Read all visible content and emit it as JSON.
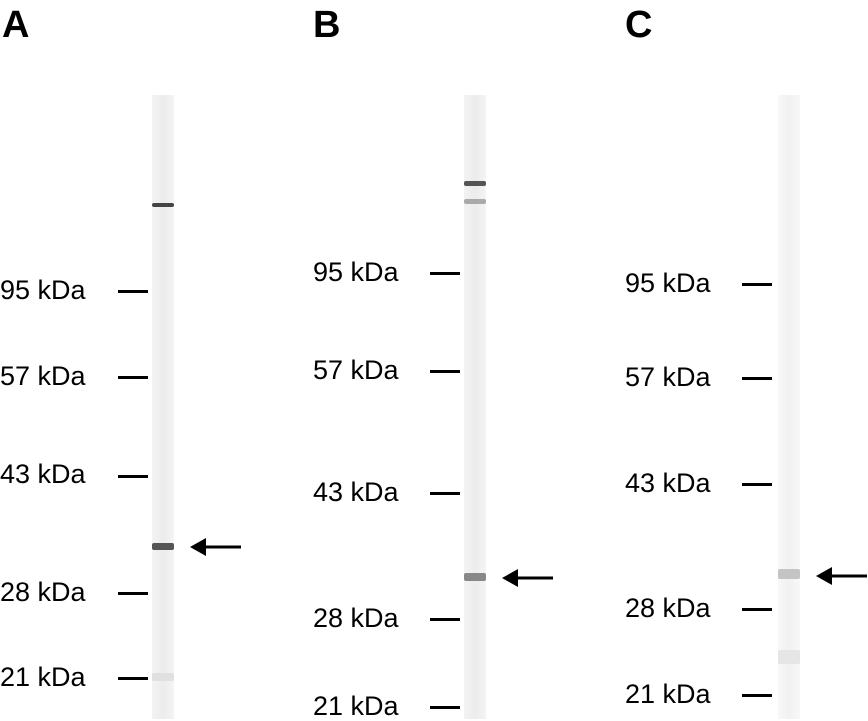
{
  "panels": [
    {
      "label": "A",
      "markers": [
        "95 kDa",
        "57 kDa",
        "43 kDa",
        "28 kDa",
        "21 kDa"
      ]
    },
    {
      "label": "B",
      "markers": [
        "95 kDa",
        "57 kDa",
        "43 kDa",
        "28 kDa",
        "21 kDa"
      ]
    },
    {
      "label": "C",
      "markers": [
        "95 kDa",
        "57 kDa",
        "43 kDa",
        "28 kDa",
        "21 kDa"
      ]
    }
  ],
  "colors": {
    "lane_background": "#eeeeee",
    "band_dark": "#333333",
    "text": "#000000"
  },
  "icons": {
    "band_indicator": "left-arrow-icon"
  }
}
